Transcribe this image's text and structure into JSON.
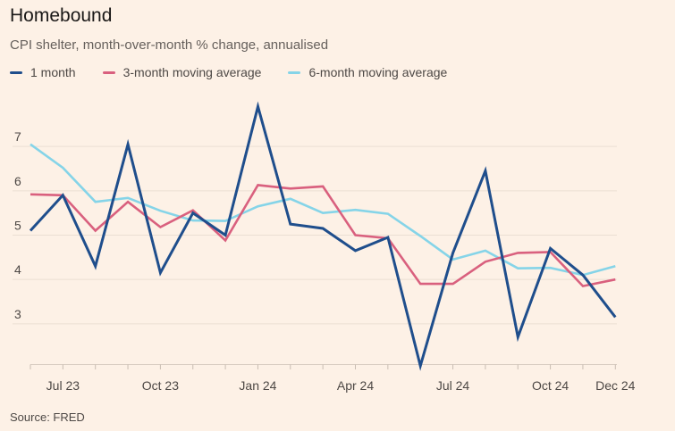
{
  "header": {
    "title": "Homebound",
    "subtitle": "CPI shelter, month-over-month % change, annualised"
  },
  "legend": [
    {
      "label": "1 month",
      "color": "#1f4e8c"
    },
    {
      "label": "3-month moving average",
      "color": "#d9607e"
    },
    {
      "label": "6-month moving average",
      "color": "#85d4e8"
    }
  ],
  "source": "Source: FRED",
  "chart_data": {
    "type": "line",
    "x": [
      "2023-06",
      "2023-07",
      "2023-08",
      "2023-09",
      "2023-10",
      "2023-11",
      "2023-12",
      "2024-01",
      "2024-02",
      "2024-03",
      "2024-04",
      "2024-05",
      "2024-06",
      "2024-07",
      "2024-08",
      "2024-09",
      "2024-10",
      "2024-11",
      "2024-12"
    ],
    "x_tick_labels": [
      "Jul 23",
      "Oct 23",
      "Jan 24",
      "Apr 24",
      "Jul 24",
      "Oct 24",
      "Dec 24"
    ],
    "x_tick_positions": [
      "2023-07",
      "2023-10",
      "2024-01",
      "2024-04",
      "2024-07",
      "2024-10",
      "2024-12"
    ],
    "y_ticks": [
      3,
      4,
      5,
      6,
      7
    ],
    "ylim": [
      2.05,
      8.05
    ],
    "grid": true,
    "legend_position": "top-left",
    "series": [
      {
        "name": "1 month",
        "color": "#1f4e8c",
        "values": [
          5.1,
          5.9,
          4.3,
          7.05,
          4.15,
          5.5,
          5.0,
          7.9,
          5.25,
          5.15,
          4.65,
          4.95,
          2.05,
          4.6,
          6.45,
          2.7,
          4.7,
          4.1,
          3.15
        ]
      },
      {
        "name": "3-month moving average",
        "color": "#d9607e",
        "values": [
          5.92,
          5.9,
          5.1,
          5.75,
          5.18,
          5.56,
          4.88,
          6.13,
          6.05,
          6.1,
          5.0,
          4.93,
          3.9,
          3.9,
          4.4,
          4.6,
          4.62,
          3.85,
          4.0
        ]
      },
      {
        "name": "6-month moving average",
        "color": "#85d4e8",
        "values": [
          7.05,
          6.52,
          5.75,
          5.84,
          5.55,
          5.33,
          5.32,
          5.65,
          5.82,
          5.5,
          5.57,
          5.48,
          4.98,
          4.45,
          4.65,
          4.25,
          4.26,
          4.1,
          4.3
        ]
      }
    ]
  }
}
